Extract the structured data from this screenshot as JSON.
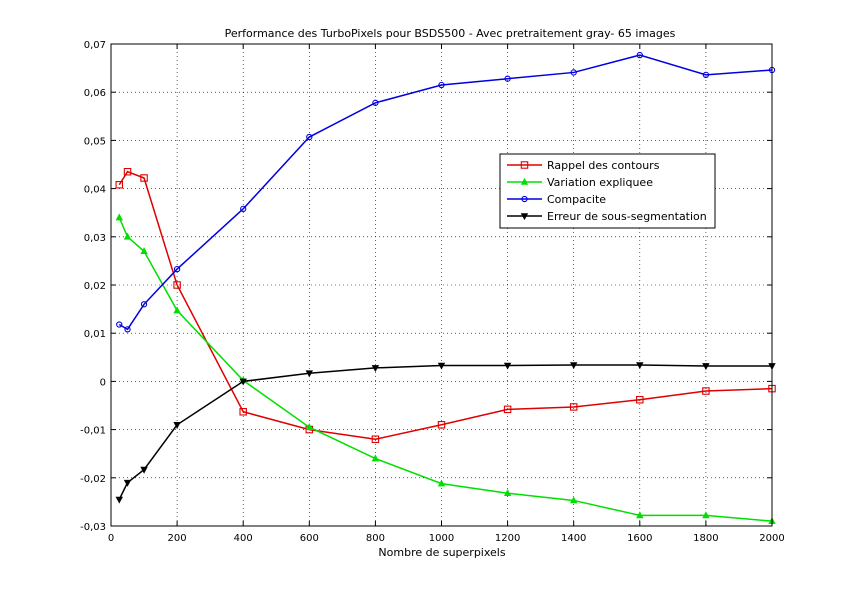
{
  "chart_data": {
    "type": "line",
    "title": "Performance des TurboPixels pour BSDS500 - Avec pretraitement gray- 65 images",
    "xlabel": "Nombre de superpixels",
    "ylabel": "",
    "xlim": [
      0,
      2000
    ],
    "ylim": [
      -0.03,
      0.07
    ],
    "xticks": [
      0,
      200,
      400,
      600,
      800,
      1000,
      1200,
      1400,
      1600,
      1800,
      2000
    ],
    "xtick_labels": [
      "0",
      "200",
      "400",
      "600",
      "800",
      "1000",
      "1200",
      "1400",
      "1600",
      "1800",
      "2000"
    ],
    "yticks": [
      -0.03,
      -0.02,
      -0.01,
      0,
      0.01,
      0.02,
      0.03,
      0.04,
      0.05,
      0.06,
      0.07
    ],
    "ytick_labels": [
      "-0,03",
      "-0,02",
      "-0,01",
      "0",
      "0,01",
      "0,02",
      "0,03",
      "0,04",
      "0,05",
      "0,06",
      "0,07"
    ],
    "grid": true,
    "legend_position": "upper-right (inside)",
    "x": [
      25,
      50,
      100,
      200,
      400,
      600,
      800,
      1000,
      1200,
      1400,
      1600,
      1800,
      2000
    ],
    "series": [
      {
        "name": "Rappel des contours",
        "color": "#e00000",
        "marker": "square",
        "values": [
          0.0408,
          0.0435,
          0.0422,
          0.02,
          -0.0063,
          -0.01,
          -0.012,
          -0.009,
          -0.0058,
          -0.0053,
          -0.0038,
          -0.002,
          -0.0015
        ]
      },
      {
        "name": "Variation expliquee",
        "color": "#00e000",
        "marker": "triangle",
        "values": [
          0.034,
          0.03,
          0.027,
          0.0147,
          0.0002,
          -0.0095,
          -0.016,
          -0.0212,
          -0.0232,
          -0.0247,
          -0.0278,
          -0.0278,
          -0.029
        ]
      },
      {
        "name": "Compacite",
        "color": "#0000e0",
        "marker": "circle",
        "values": [
          0.0118,
          0.0108,
          0.016,
          0.0233,
          0.0358,
          0.0507,
          0.0578,
          0.0615,
          0.0628,
          0.0641,
          0.0677,
          0.0636,
          0.0646
        ]
      },
      {
        "name": "Erreur de sous-segmentation",
        "color": "#000000",
        "marker": "down-triangle",
        "values": [
          -0.0245,
          -0.021,
          -0.0183,
          -0.009,
          0.0,
          0.0017,
          0.0028,
          0.0033,
          0.0033,
          0.0034,
          0.0034,
          0.0032,
          0.0032
        ]
      }
    ]
  }
}
